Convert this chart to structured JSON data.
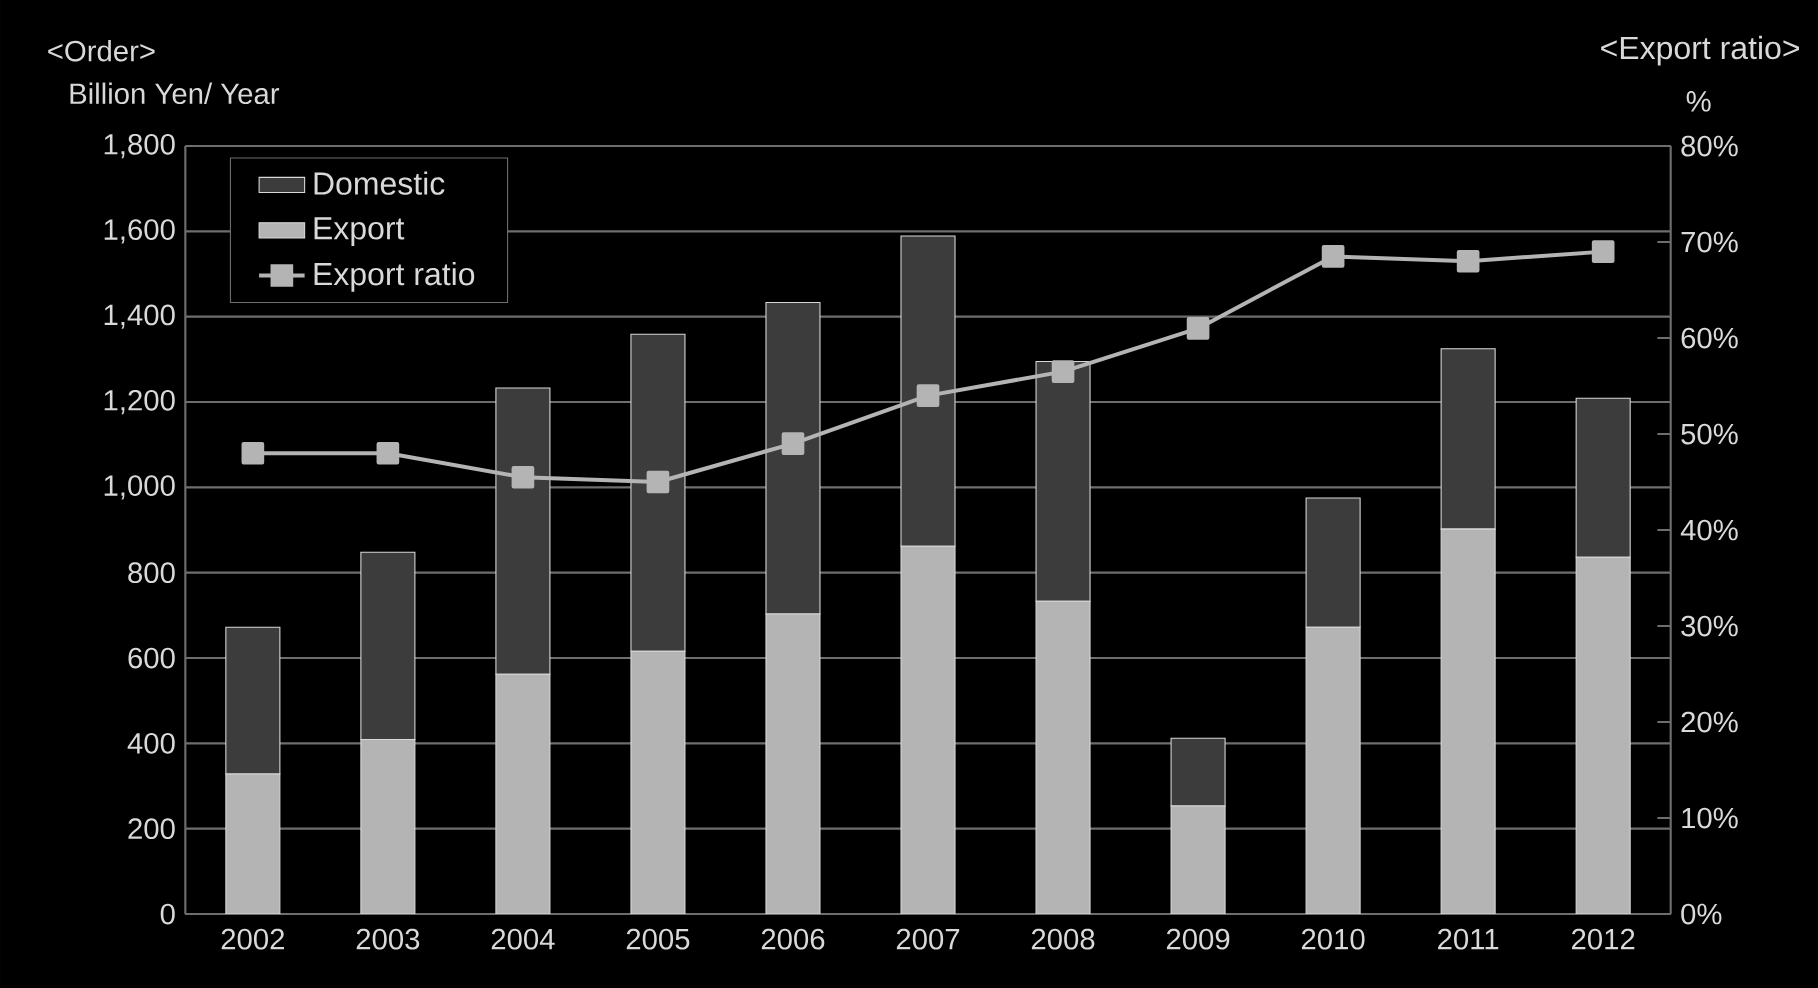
{
  "chart_data": {
    "type": "bar",
    "stacked": true,
    "ylabel": "<Order>",
    "y2label": "<Export ratio>",
    "annotations": [
      "Billion Yen/ Year",
      "%"
    ],
    "categories": [
      "2002",
      "2003",
      "2004",
      "2005",
      "2006",
      "2007",
      "2008",
      "2009",
      "2010",
      "2011",
      "2012"
    ],
    "series": [
      {
        "name": "Export",
        "color": "#b4b4b4",
        "values": [
          328,
          409,
          562,
          616,
          703,
          862,
          733,
          253,
          672,
          902,
          836
        ]
      },
      {
        "name": "Domestic",
        "color": "#3c3c3c",
        "values": [
          344,
          439,
          671,
          743,
          730,
          727,
          562,
          159,
          303,
          423,
          373
        ]
      },
      {
        "name": "Export ratio",
        "type": "line",
        "axis": "y2",
        "color": "#b4b4b4",
        "values": [
          48,
          48,
          45.5,
          45,
          49,
          54,
          56.5,
          61,
          68.5,
          68,
          69
        ]
      }
    ],
    "ylim": [
      0,
      1800
    ],
    "yticks": [
      0,
      200,
      400,
      600,
      800,
      {
        "value": 1000,
        "label": "1,000"
      },
      {
        "value": 1200,
        "label": "1,200"
      },
      {
        "value": 1400,
        "label": "1,400"
      },
      {
        "value": 1600,
        "label": "1,600"
      },
      {
        "value": 1800,
        "label": "1,800"
      }
    ],
    "y2lim": [
      0,
      80
    ],
    "y2ticks": [
      {
        "value": 0,
        "label": "0%"
      },
      {
        "value": 10,
        "label": "10%"
      },
      {
        "value": 20,
        "label": "20%"
      },
      {
        "value": 30,
        "label": "30%"
      },
      {
        "value": 40,
        "label": "40%"
      },
      {
        "value": 50,
        "label": "50%"
      },
      {
        "value": 60,
        "label": "60%"
      },
      {
        "value": 70,
        "label": "70%"
      },
      {
        "value": 80,
        "label": "80%"
      }
    ],
    "grid": "y",
    "legend": "top left",
    "marker": "square"
  }
}
